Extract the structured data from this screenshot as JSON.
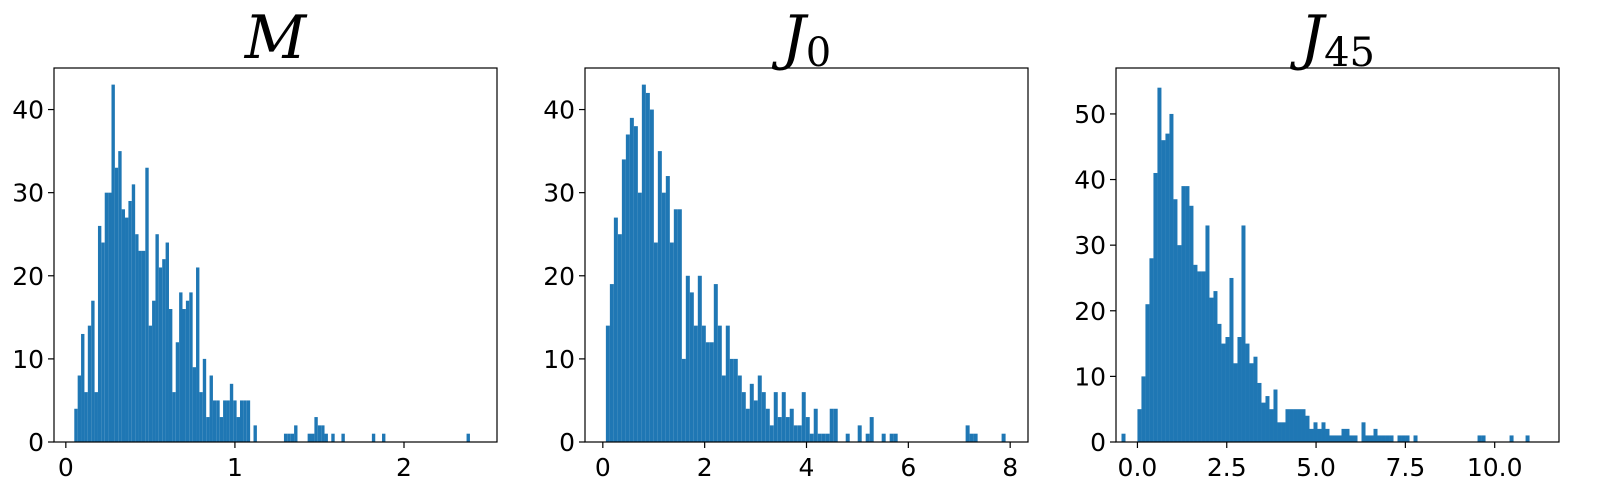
{
  "chart_data": [
    {
      "type": "bar",
      "title": "M",
      "title_sub": "",
      "color": "#1f77b4",
      "xlim": [
        -0.07,
        2.55
      ],
      "ylim": [
        0,
        45
      ],
      "xticks": [
        0,
        1,
        2
      ],
      "xtick_labels": [
        "0",
        "1",
        "2"
      ],
      "yticks": [
        0,
        10,
        20,
        30,
        40
      ],
      "ytick_labels": [
        "0",
        "10",
        "20",
        "30",
        "40"
      ],
      "bin_start": 0.05,
      "bin_width": 0.02,
      "counts": [
        4,
        8,
        13,
        6,
        14,
        17,
        6,
        26,
        24,
        30,
        30,
        43,
        33,
        35,
        28,
        27,
        29,
        31,
        25,
        23,
        23,
        33,
        14,
        17,
        25,
        21,
        22,
        24,
        16,
        6,
        12,
        18,
        16,
        17,
        18,
        9,
        21,
        6,
        10,
        3,
        8,
        5,
        5,
        3,
        5,
        5,
        7,
        5,
        3,
        5,
        5,
        5,
        0,
        2,
        0,
        0,
        0,
        0,
        0,
        0,
        0,
        0,
        1,
        1,
        1,
        2,
        0,
        0,
        0,
        1,
        1,
        3,
        2,
        2,
        1,
        0,
        1,
        0,
        0,
        1,
        0,
        0,
        0,
        0,
        0,
        0,
        0,
        0,
        1,
        0,
        0,
        1,
        0,
        0,
        0,
        0,
        0,
        0,
        0,
        0,
        0,
        0,
        0,
        0,
        0,
        0,
        0,
        0,
        0,
        0,
        0,
        0,
        0,
        0,
        0,
        0,
        1
      ]
    },
    {
      "type": "bar",
      "title": "J",
      "title_sub": "0",
      "color": "#1f77b4",
      "xlim": [
        -0.35,
        8.35
      ],
      "ylim": [
        0,
        45
      ],
      "xticks": [
        0,
        2,
        4,
        6,
        8
      ],
      "xtick_labels": [
        "0",
        "2",
        "4",
        "6",
        "8"
      ],
      "yticks": [
        0,
        10,
        20,
        30,
        40
      ],
      "ytick_labels": [
        "0",
        "10",
        "20",
        "30",
        "40"
      ],
      "bin_start": 0.06,
      "bin_width": 0.0785,
      "counts": [
        14,
        19,
        27,
        25,
        34,
        37,
        39,
        38,
        30,
        43,
        42,
        40,
        24,
        35,
        30,
        32,
        24,
        28,
        28,
        10,
        20,
        18,
        14,
        20,
        14,
        12,
        12,
        19,
        14,
        8,
        14,
        10,
        10,
        8,
        6,
        4,
        7,
        5,
        8,
        6,
        4,
        2,
        6,
        3,
        6,
        3,
        4,
        2,
        2,
        6,
        3,
        1,
        4,
        1,
        1,
        1,
        4,
        4,
        0,
        0,
        1,
        0,
        0,
        2,
        0,
        1,
        3,
        0,
        0,
        1,
        0,
        1,
        1,
        0,
        0,
        0,
        0,
        0,
        0,
        0,
        0,
        0,
        0,
        0,
        0,
        0,
        0,
        0,
        0,
        0,
        2,
        1,
        1,
        0,
        0,
        0,
        0,
        0,
        0,
        1,
        0,
        0,
        0,
        0,
        0,
        0,
        0,
        0,
        0,
        0,
        0,
        0,
        0,
        0,
        0,
        0,
        0,
        0,
        0,
        0,
        0,
        0,
        0,
        0,
        0,
        0,
        0,
        0,
        0,
        1
      ]
    },
    {
      "type": "bar",
      "title": "J",
      "title_sub": "45",
      "color": "#1f77b4",
      "xlim": [
        -0.6,
        11.8
      ],
      "ylim": [
        0,
        57
      ],
      "xticks": [
        0,
        2.5,
        5,
        7.5,
        10
      ],
      "xtick_labels": [
        "0.0",
        "2.5",
        "5.0",
        "7.5",
        "10.0"
      ],
      "yticks": [
        0,
        10,
        20,
        30,
        40,
        50
      ],
      "ytick_labels": [
        "0",
        "10",
        "20",
        "30",
        "40",
        "50"
      ],
      "bin_start": 0.0,
      "bin_width": 0.112,
      "counts": [
        5,
        10,
        21,
        28,
        41,
        54,
        46,
        47,
        50,
        37,
        30,
        39,
        39,
        36,
        27,
        26,
        26,
        33,
        22,
        23,
        18,
        15,
        16,
        25,
        12,
        16,
        33,
        15,
        12,
        13,
        9,
        6,
        7,
        5,
        8,
        3,
        3,
        5,
        5,
        5,
        5,
        5,
        4,
        2,
        3,
        2,
        3,
        2,
        1,
        1,
        1,
        2,
        2,
        1,
        1,
        0,
        3,
        1,
        1,
        2,
        1,
        1,
        1,
        1,
        0,
        1,
        1,
        1,
        0,
        1,
        0,
        0,
        0,
        0,
        0,
        0,
        0,
        0,
        0,
        0,
        0,
        0,
        0,
        0,
        0,
        1,
        1,
        0,
        0,
        0,
        0,
        0,
        0,
        1,
        0,
        0,
        0,
        1
      ]
    }
  ]
}
